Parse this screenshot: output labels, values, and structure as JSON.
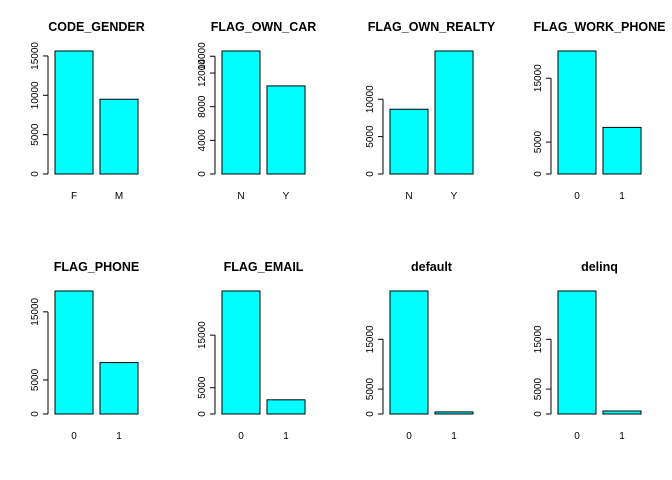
{
  "chart_data": [
    {
      "type": "bar",
      "title": "CODE_GENDER",
      "categories": [
        "F",
        "M"
      ],
      "values": [
        15630,
        9500
      ],
      "yticks": [
        0,
        5000,
        10000,
        15000
      ],
      "ylim": [
        0,
        15630
      ]
    },
    {
      "type": "bar",
      "title": "FLAG_OWN_CAR",
      "categories": [
        "N",
        "Y"
      ],
      "values": [
        14620,
        10470
      ],
      "yticks": [
        0,
        4000,
        8000,
        12000,
        14000
      ],
      "ylim": [
        0,
        14620
      ]
    },
    {
      "type": "bar",
      "title": "FLAG_OWN_REALTY",
      "categories": [
        "N",
        "Y"
      ],
      "values": [
        8660,
        16450
      ],
      "yticks": [
        0,
        5000,
        10000
      ],
      "ylim": [
        0,
        16450
      ]
    },
    {
      "type": "bar",
      "title": "FLAG_WORK_PHONE",
      "categories": [
        "0",
        "1"
      ],
      "values": [
        19260,
        7300
      ],
      "yticks": [
        0,
        5000,
        15000
      ],
      "ylim": [
        0,
        19260
      ]
    },
    {
      "type": "bar",
      "title": "FLAG_PHONE",
      "categories": [
        "0",
        "1"
      ],
      "values": [
        18060,
        7550
      ],
      "yticks": [
        0,
        5000,
        15000
      ],
      "ylim": [
        0,
        18060
      ]
    },
    {
      "type": "bar",
      "title": "FLAG_EMAIL",
      "categories": [
        "0",
        "1"
      ],
      "values": [
        23400,
        2700
      ],
      "yticks": [
        0,
        5000,
        15000
      ],
      "ylim": [
        0,
        23400
      ]
    },
    {
      "type": "bar",
      "title": "default",
      "categories": [
        "0",
        "1"
      ],
      "values": [
        24700,
        420
      ],
      "yticks": [
        0,
        5000,
        15000
      ],
      "ylim": [
        0,
        24700
      ]
    },
    {
      "type": "bar",
      "title": "delinq",
      "categories": [
        "0",
        "1"
      ],
      "values": [
        24700,
        600
      ],
      "yticks": [
        0,
        5000,
        15000
      ],
      "ylim": [
        0,
        24700
      ]
    }
  ]
}
